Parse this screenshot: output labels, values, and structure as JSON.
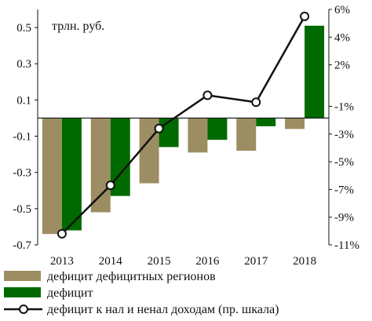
{
  "chart_data": {
    "type": "bar",
    "unit_label": "трлн. руб.",
    "categories": [
      "2013",
      "2014",
      "2015",
      "2016",
      "2017",
      "2018"
    ],
    "ylim": [
      -0.7,
      0.6
    ],
    "y_ticks": [
      "0.5",
      "0.3",
      "0.1",
      "-0.1",
      "-0.3",
      "-0.5",
      "-0.7"
    ],
    "y2lim": [
      -11,
      6
    ],
    "y2_ticks": [
      "6%",
      "4%",
      "2%",
      "-1%",
      "-3%",
      "-5%",
      "-7%",
      "-9%",
      "-11%"
    ],
    "series": [
      {
        "name": "дефицит дефицитных регионов",
        "type": "bar",
        "axis": "left",
        "color": "#9c8e62",
        "values": [
          -0.64,
          -0.52,
          -0.36,
          -0.19,
          -0.18,
          -0.06
        ]
      },
      {
        "name": "дефицит",
        "type": "bar",
        "axis": "left",
        "color": "#006a00",
        "values": [
          -0.62,
          -0.43,
          -0.16,
          -0.12,
          -0.045,
          0.51
        ]
      },
      {
        "name": "дефицит к нал и ненал доходам (пр. шкала)",
        "type": "line",
        "axis": "right",
        "color": "#111111",
        "values": [
          -10.2,
          -6.7,
          -2.6,
          -0.2,
          -0.7,
          5.5
        ]
      }
    ],
    "grid": false,
    "legend_position": "bottom"
  }
}
